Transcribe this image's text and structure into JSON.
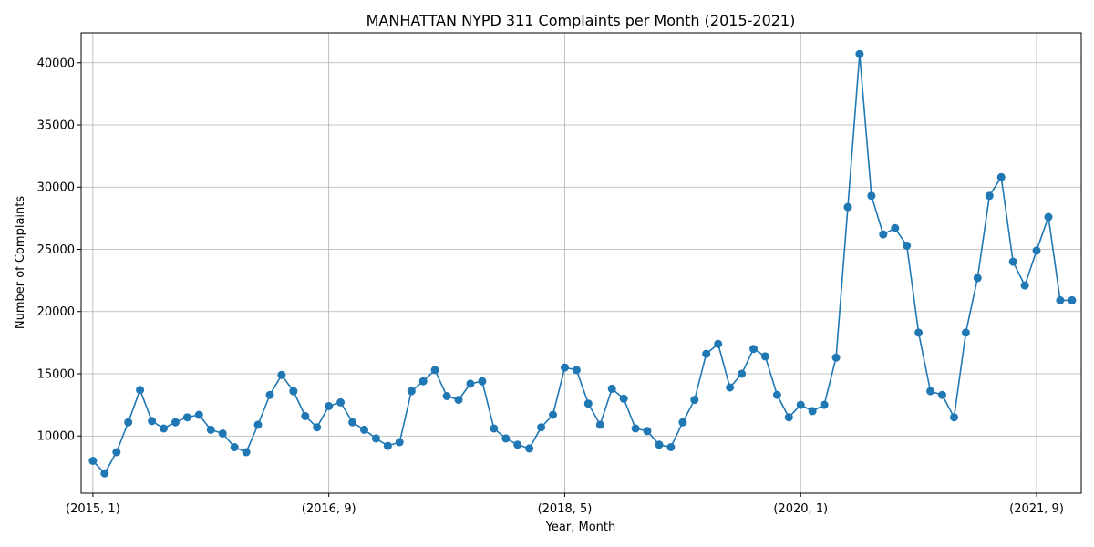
{
  "chart_data": {
    "type": "line",
    "title": "MANHATTAN NYPD 311 Complaints per Month (2015-2021)",
    "xlabel": "Year, Month",
    "ylabel": "Number of Complaints",
    "grid": true,
    "x_ticks": [
      "(2015, 1)",
      "(2016, 9)",
      "(2018, 5)",
      "(2020, 1)",
      "(2021, 9)"
    ],
    "y_ticks": [
      10000,
      15000,
      20000,
      25000,
      30000,
      35000,
      40000
    ],
    "ylim": [
      5400,
      42400
    ],
    "xlim": [
      2014.917,
      2021.982
    ],
    "color": "#1f77b4",
    "series": [
      {
        "x": [
          "2015-01",
          "2015-02",
          "2015-03",
          "2015-04",
          "2015-05",
          "2015-06",
          "2015-07",
          "2015-08",
          "2015-09",
          "2015-10",
          "2015-11",
          "2015-12",
          "2016-01",
          "2016-02",
          "2016-03",
          "2016-04",
          "2016-05",
          "2016-06",
          "2016-07",
          "2016-08",
          "2016-09",
          "2016-10",
          "2016-11",
          "2016-12",
          "2017-01",
          "2017-02",
          "2017-03",
          "2017-04",
          "2017-05",
          "2017-06",
          "2017-07",
          "2017-08",
          "2017-09",
          "2017-10",
          "2017-11",
          "2017-12",
          "2018-01",
          "2018-02",
          "2018-03",
          "2018-04",
          "2018-05",
          "2018-06",
          "2018-07",
          "2018-08",
          "2018-09",
          "2018-10",
          "2018-11",
          "2018-12",
          "2019-01",
          "2019-02",
          "2019-03",
          "2019-04",
          "2019-05",
          "2019-06",
          "2019-07",
          "2019-08",
          "2019-09",
          "2019-10",
          "2019-11",
          "2019-12",
          "2020-01",
          "2020-02",
          "2020-03",
          "2020-04",
          "2020-05",
          "2020-06",
          "2020-07",
          "2020-08",
          "2020-09",
          "2020-10",
          "2020-11",
          "2020-12",
          "2021-01",
          "2021-02",
          "2021-03",
          "2021-04",
          "2021-05",
          "2021-06",
          "2021-07",
          "2021-08",
          "2021-09",
          "2021-10",
          "2021-11",
          "2021-12"
        ],
        "values": [
          8000,
          7000,
          8700,
          11100,
          13700,
          11200,
          10600,
          11100,
          11500,
          11700,
          10500,
          10200,
          9100,
          8700,
          10900,
          13300,
          14900,
          13600,
          11600,
          10700,
          12400,
          12700,
          11100,
          10500,
          9800,
          9200,
          9500,
          13600,
          14400,
          15300,
          13200,
          12900,
          14200,
          14400,
          10600,
          9800,
          9300,
          9000,
          10700,
          11700,
          15500,
          15300,
          12600,
          10900,
          13800,
          13000,
          10600,
          10400,
          9300,
          9100,
          11100,
          12900,
          16600,
          17400,
          13900,
          15000,
          17000,
          16400,
          13300,
          11500,
          12500,
          12000,
          12500,
          16300,
          28400,
          40700,
          29300,
          26200,
          26700,
          25300,
          18300,
          13600,
          13300,
          11500,
          18300,
          22700,
          29300,
          30800,
          24000,
          22100,
          24900,
          27600,
          20900,
          20900
        ]
      }
    ]
  }
}
